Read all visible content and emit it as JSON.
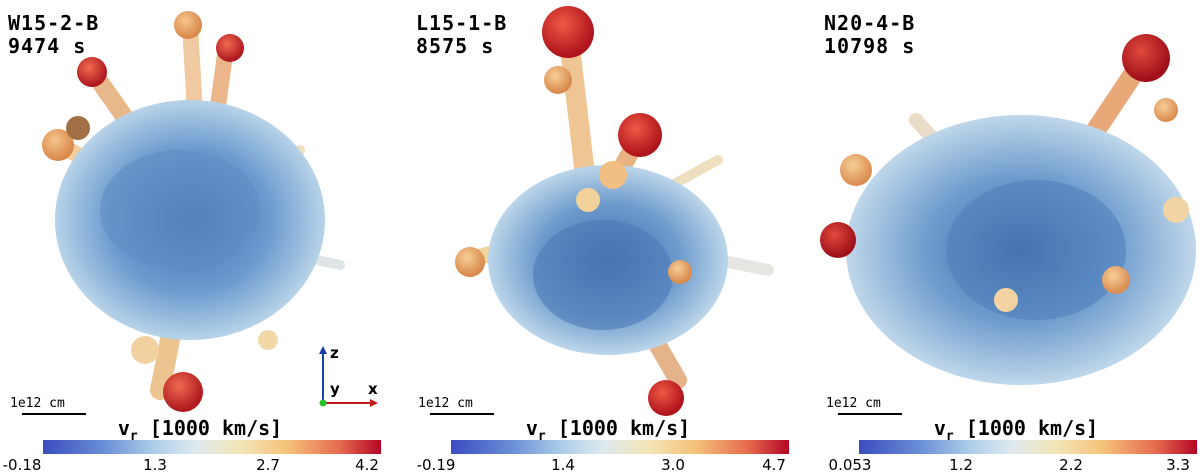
{
  "panels": [
    {
      "model": "W15-2-B",
      "time": "9474 s",
      "scale": "1e12 cm",
      "cb_title_main": "v",
      "cb_title_sub": "r",
      "cb_title_rest": "[1000 km/s]",
      "ticks": [
        "-0.18",
        "1.3",
        "2.7",
        "4.2"
      ]
    },
    {
      "model": "L15-1-B",
      "time": "8575 s",
      "scale": "1e12 cm",
      "cb_title_main": "v",
      "cb_title_sub": "r",
      "cb_title_rest": "[1000 km/s]",
      "ticks": [
        "-0.19",
        "1.4",
        "3.0",
        "4.7"
      ]
    },
    {
      "model": "N20-4-B",
      "time": "10798 s",
      "scale": "1e12 cm",
      "cb_title_main": "v",
      "cb_title_sub": "r",
      "cb_title_rest": "[1000 km/s]",
      "ticks": [
        "0.053",
        "1.2",
        "2.2",
        "3.3"
      ]
    }
  ],
  "axes": {
    "z": "z",
    "y": "y",
    "x": "x"
  },
  "colors": {
    "low": "#3b4cc0",
    "mid": "#dde9ee",
    "high": "#b40426"
  }
}
